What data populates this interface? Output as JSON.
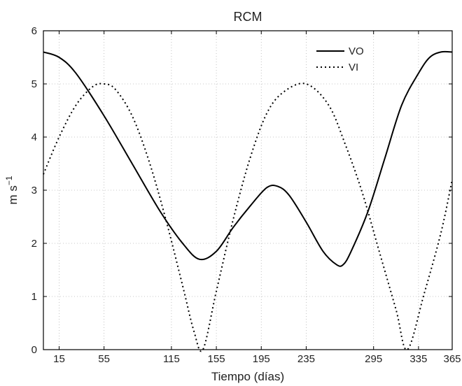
{
  "chart_data": {
    "type": "line",
    "title": "RCM",
    "xlabel": "Tiempo (días)",
    "ylabel": "m s",
    "ylabel_sup": "−1",
    "xlim": [
      1,
      365
    ],
    "ylim": [
      0,
      6
    ],
    "xticks": [
      15,
      55,
      115,
      155,
      195,
      235,
      295,
      335,
      365
    ],
    "yticks": [
      0,
      1,
      2,
      3,
      4,
      5,
      6
    ],
    "grid": true,
    "legend_position": "top-right",
    "series": [
      {
        "name": "VO",
        "style": "solid",
        "color": "#000000",
        "x": [
          1,
          15,
          30,
          55,
          80,
          105,
          125,
          140,
          155,
          170,
          185,
          200,
          210,
          220,
          235,
          250,
          262,
          268,
          275,
          290,
          305,
          320,
          335,
          345,
          355,
          365
        ],
        "y": [
          5.6,
          5.5,
          5.2,
          4.4,
          3.5,
          2.6,
          2.0,
          1.7,
          1.85,
          2.3,
          2.7,
          3.05,
          3.07,
          2.9,
          2.4,
          1.85,
          1.6,
          1.6,
          1.85,
          2.6,
          3.6,
          4.6,
          5.2,
          5.5,
          5.6,
          5.6
        ]
      },
      {
        "name": "VI",
        "style": "dotted",
        "color": "#000000",
        "x": [
          1,
          15,
          30,
          45,
          55,
          65,
          80,
          95,
          110,
          125,
          135,
          143,
          155,
          170,
          185,
          200,
          215,
          235,
          255,
          270,
          285,
          300,
          315,
          325,
          340,
          355,
          365
        ],
        "y": [
          3.3,
          4.0,
          4.6,
          4.95,
          5.0,
          4.9,
          4.4,
          3.55,
          2.45,
          1.2,
          0.35,
          0.0,
          1.1,
          2.45,
          3.6,
          4.45,
          4.85,
          5.0,
          4.6,
          3.85,
          2.95,
          1.85,
          0.75,
          0.0,
          1.05,
          2.2,
          3.2
        ]
      }
    ]
  }
}
